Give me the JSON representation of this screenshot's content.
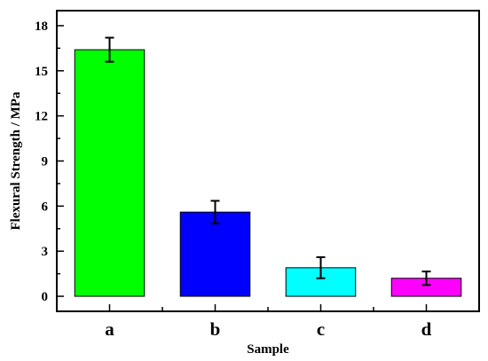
{
  "chart_data": {
    "type": "bar",
    "title": "",
    "xlabel": "Sample",
    "ylabel": "Flexural Strength / MPa",
    "categories": [
      "a",
      "b",
      "c",
      "d"
    ],
    "values": [
      16.4,
      5.6,
      1.9,
      1.2
    ],
    "errors": [
      0.8,
      0.75,
      0.7,
      0.45
    ],
    "colors": [
      "#00ff00",
      "#0000ff",
      "#00ffff",
      "#ff00ff"
    ],
    "ylim": [
      -1,
      19
    ],
    "yticks": [
      0,
      3,
      6,
      9,
      12,
      15,
      18
    ],
    "grid": false,
    "legend": "none"
  }
}
